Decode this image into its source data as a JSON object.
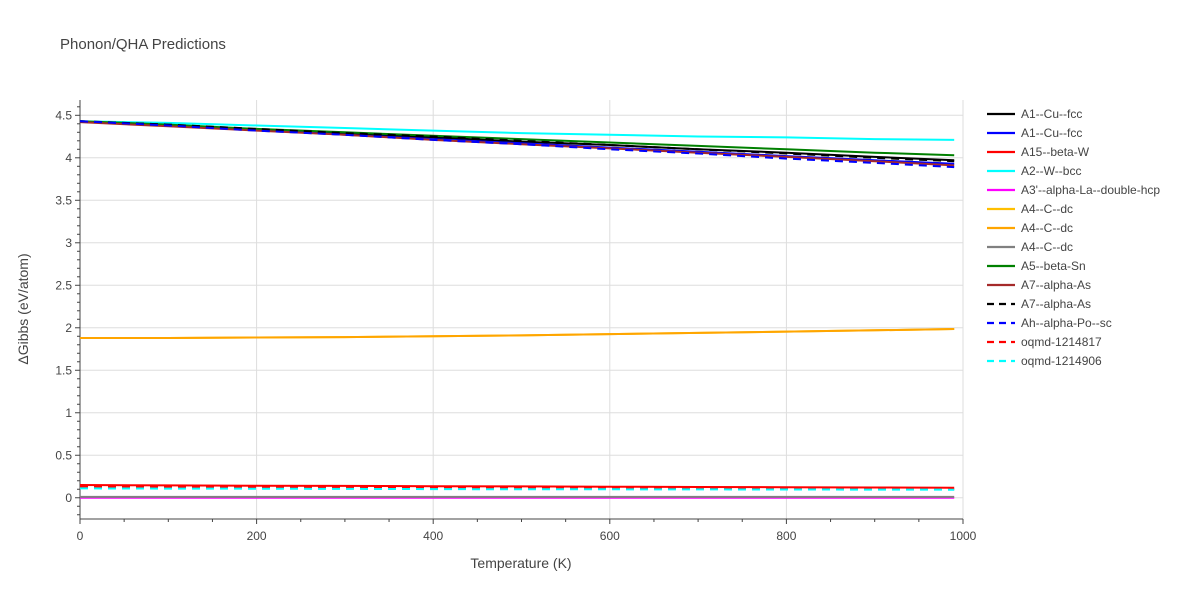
{
  "chart_data": {
    "type": "line",
    "title": "Phonon/QHA Predictions",
    "xlabel": "Temperature (K)",
    "ylabel": "ΔGibbs (eV/atom)",
    "xlim": [
      0,
      1000
    ],
    "ylim": [
      -0.25,
      4.68
    ],
    "x_ticks": [
      0,
      200,
      400,
      600,
      800,
      1000
    ],
    "y_ticks": [
      0,
      0.5,
      1,
      1.5,
      2,
      2.5,
      3,
      3.5,
      4,
      4.5
    ],
    "x_tick_labels": [
      "0",
      "200",
      "400",
      "600",
      "800",
      "1000"
    ],
    "y_tick_labels": [
      "0",
      "0.5",
      "1",
      "1.5",
      "2",
      "2.5",
      "3",
      "3.5",
      "4",
      "4.5"
    ],
    "grid": true,
    "legend_position": "right",
    "x": [
      0,
      100,
      200,
      300,
      400,
      500,
      600,
      700,
      800,
      900,
      990
    ],
    "series": [
      {
        "name": "A1--Cu--fcc",
        "color": "#000000",
        "dash": "solid",
        "values": [
          4.43,
          4.38,
          4.33,
          4.28,
          4.24,
          4.19,
          4.15,
          4.1,
          4.06,
          4.01,
          3.97
        ]
      },
      {
        "name": "A1--Cu--fcc",
        "color": "#0000ff",
        "dash": "solid",
        "values": [
          4.43,
          4.38,
          4.33,
          4.27,
          4.22,
          4.17,
          4.12,
          4.07,
          4.02,
          3.97,
          3.93
        ]
      },
      {
        "name": "A15--beta-W",
        "color": "#ff0000",
        "dash": "solid",
        "values": [
          0.15,
          0.145,
          0.142,
          0.139,
          0.136,
          0.133,
          0.13,
          0.127,
          0.124,
          0.121,
          0.118
        ]
      },
      {
        "name": "A2--W--bcc",
        "color": "#00ffff",
        "dash": "solid",
        "values": [
          4.43,
          4.41,
          4.38,
          4.35,
          4.32,
          4.29,
          4.27,
          4.25,
          4.24,
          4.22,
          4.21
        ]
      },
      {
        "name": "A3'--alpha-La--double-hcp",
        "color": "#ff00ff",
        "dash": "solid",
        "values": [
          0.0,
          0.0,
          0.0,
          0.0,
          0.0,
          0.0,
          0.0,
          0.0,
          0.0,
          0.0,
          0.0
        ]
      },
      {
        "name": "A4--C--dc",
        "color": "#ffbf00",
        "dash": "solid",
        "values": [
          1.88,
          1.88,
          1.885,
          1.89,
          1.9,
          1.91,
          1.925,
          1.94,
          1.955,
          1.97,
          1.985
        ]
      },
      {
        "name": "A4--C--dc",
        "color": "#ffa500",
        "dash": "solid",
        "values": [
          1.88,
          1.88,
          1.885,
          1.89,
          1.9,
          1.91,
          1.925,
          1.94,
          1.955,
          1.97,
          1.985
        ]
      },
      {
        "name": "A4--C--dc",
        "color": "#808080",
        "dash": "solid",
        "values": [
          0.01,
          0.01,
          0.01,
          0.01,
          0.01,
          0.01,
          0.01,
          0.01,
          0.01,
          0.01,
          0.01
        ]
      },
      {
        "name": "A5--beta-Sn",
        "color": "#008000",
        "dash": "solid",
        "values": [
          4.43,
          4.39,
          4.34,
          4.3,
          4.26,
          4.22,
          4.18,
          4.14,
          4.1,
          4.06,
          4.03
        ]
      },
      {
        "name": "A7--alpha-As",
        "color": "#a52a2a",
        "dash": "solid",
        "values": [
          4.42,
          4.37,
          4.32,
          4.27,
          4.21,
          4.16,
          4.11,
          4.06,
          4.01,
          3.96,
          3.91
        ]
      },
      {
        "name": "A7--alpha-As",
        "color": "#000000",
        "dash": "dash",
        "values": [
          4.43,
          4.39,
          4.34,
          4.29,
          4.25,
          4.2,
          4.15,
          4.1,
          4.05,
          4.0,
          3.96
        ]
      },
      {
        "name": "Ah--alpha-Po--sc",
        "color": "#0000ff",
        "dash": "dash",
        "values": [
          4.43,
          4.38,
          4.32,
          4.27,
          4.21,
          4.16,
          4.1,
          4.05,
          3.99,
          3.94,
          3.89
        ]
      },
      {
        "name": "oqmd-1214817",
        "color": "#ff0000",
        "dash": "dash",
        "values": [
          0.13,
          0.127,
          0.124,
          0.121,
          0.118,
          0.115,
          0.112,
          0.109,
          0.106,
          0.103,
          0.1
        ]
      },
      {
        "name": "oqmd-1214906",
        "color": "#00ffff",
        "dash": "dash",
        "values": [
          0.11,
          0.108,
          0.106,
          0.104,
          0.102,
          0.1,
          0.099,
          0.098,
          0.097,
          0.096,
          0.095
        ]
      }
    ]
  }
}
